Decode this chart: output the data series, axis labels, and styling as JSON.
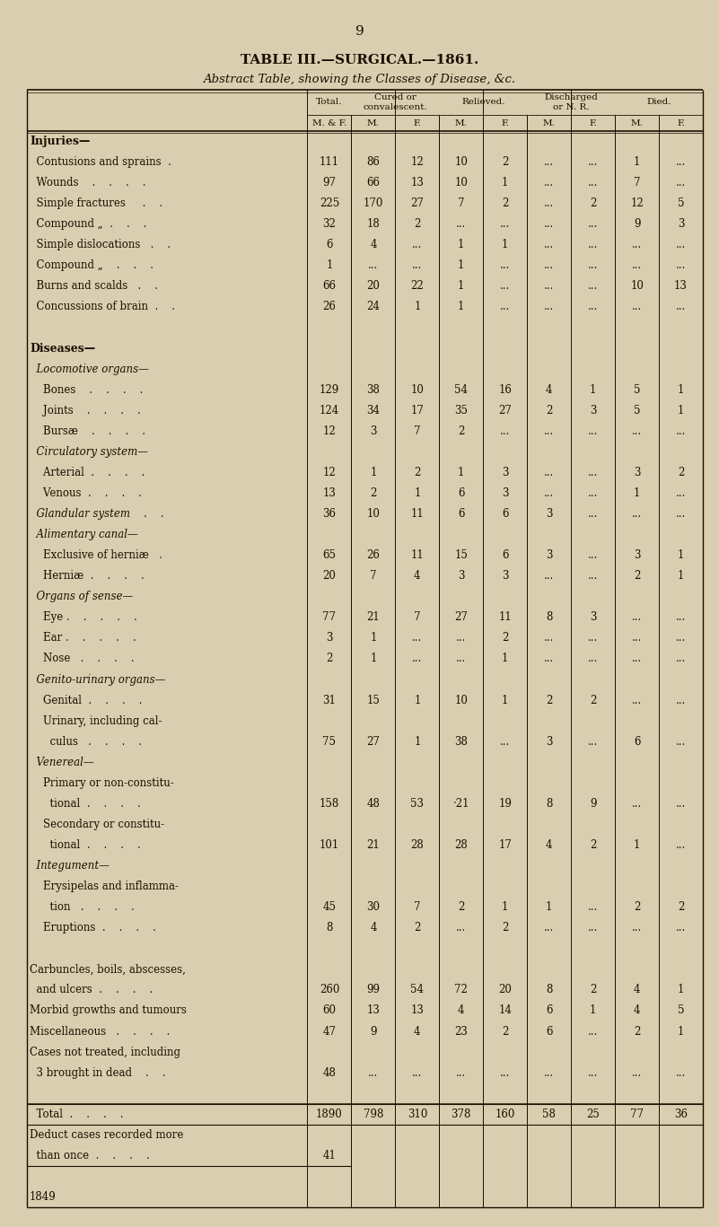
{
  "page_number": "9",
  "title": "TABLE III.—SURGICAL.—1861.",
  "subtitle": "Abstract Table, showing the Classes of Disease, &c.",
  "bg_color": "#d9cfb0",
  "text_color": "#1a0f00",
  "rows": [
    {
      "label": "Injuries—",
      "level": 0,
      "style": "bold",
      "vals": [
        "",
        "",
        "",
        "",
        "",
        "",
        "",
        "",
        ""
      ]
    },
    {
      "label": "  Contusions and sprains  .",
      "level": 1,
      "style": "normal",
      "vals": [
        "111",
        "86",
        "12",
        "10",
        "2",
        "...",
        "...",
        "1",
        "..."
      ]
    },
    {
      "label": "  Wounds    .    .    .    .",
      "level": 1,
      "style": "normal",
      "vals": [
        "97",
        "66",
        "13",
        "10",
        "1",
        "...",
        "...",
        "7",
        "..."
      ]
    },
    {
      "label": "  Simple fractures     .    .",
      "level": 1,
      "style": "normal",
      "vals": [
        "225",
        "170",
        "27",
        "7",
        "2",
        "...",
        "2",
        "12",
        "5"
      ]
    },
    {
      "label": "  Compound „  .    .    .",
      "level": 1,
      "style": "normal",
      "vals": [
        "32",
        "18",
        "2",
        "...",
        "...",
        "...",
        "...",
        "9",
        "3"
      ]
    },
    {
      "label": "  Simple dislocations   .    .",
      "level": 1,
      "style": "normal",
      "vals": [
        "6",
        "4",
        "...",
        "1",
        "1",
        "...",
        "...",
        "...",
        "..."
      ]
    },
    {
      "label": "  Compound „    .    .    .",
      "level": 1,
      "style": "normal",
      "vals": [
        "1",
        "...",
        "...",
        "1",
        "...",
        "...",
        "...",
        "...",
        "..."
      ]
    },
    {
      "label": "  Burns and scalds   .    .",
      "level": 1,
      "style": "normal",
      "vals": [
        "66",
        "20",
        "22",
        "1",
        "...",
        "...",
        "...",
        "10",
        "13"
      ]
    },
    {
      "label": "  Concussions of brain  .    .",
      "level": 1,
      "style": "normal",
      "vals": [
        "26",
        "24",
        "1",
        "1",
        "...",
        "...",
        "...",
        "...",
        "..."
      ]
    },
    {
      "label": "",
      "level": 0,
      "style": "normal",
      "vals": [
        "",
        "",
        "",
        "",
        "",
        "",
        "",
        "",
        ""
      ]
    },
    {
      "label": "Diseases—",
      "level": 0,
      "style": "bold",
      "vals": [
        "",
        "",
        "",
        "",
        "",
        "",
        "",
        "",
        ""
      ]
    },
    {
      "label": "  Locomotive organs—",
      "level": 1,
      "style": "italic",
      "vals": [
        "",
        "",
        "",
        "",
        "",
        "",
        "",
        "",
        ""
      ]
    },
    {
      "label": "    Bones    .    .    .    .",
      "level": 2,
      "style": "normal",
      "vals": [
        "129",
        "38",
        "10",
        "54",
        "16",
        "4",
        "1",
        "5",
        "1"
      ]
    },
    {
      "label": "    Joints    .    .    .    .",
      "level": 2,
      "style": "normal",
      "vals": [
        "124",
        "34",
        "17",
        "35",
        "27",
        "2",
        "3",
        "5",
        "1"
      ]
    },
    {
      "label": "    Bursæ    .    .    .    .",
      "level": 2,
      "style": "normal",
      "vals": [
        "12",
        "3",
        "7",
        "2",
        "...",
        "...",
        "...",
        "...",
        "..."
      ]
    },
    {
      "label": "  Circulatory system—",
      "level": 1,
      "style": "italic",
      "vals": [
        "",
        "",
        "",
        "",
        "",
        "",
        "",
        "",
        ""
      ]
    },
    {
      "label": "    Arterial  .    .    .    .",
      "level": 2,
      "style": "normal",
      "vals": [
        "12",
        "1",
        "2",
        "1",
        "3",
        "...",
        "...",
        "3",
        "2"
      ]
    },
    {
      "label": "    Venous  .    .    .    .",
      "level": 2,
      "style": "normal",
      "vals": [
        "13",
        "2",
        "1",
        "6",
        "3",
        "...",
        "...",
        "1",
        "..."
      ]
    },
    {
      "label": "  Glandular system    .    .",
      "level": 1,
      "style": "italic",
      "vals": [
        "36",
        "10",
        "11",
        "6",
        "6",
        "3",
        "...",
        "...",
        "..."
      ]
    },
    {
      "label": "  Alimentary canal—",
      "level": 1,
      "style": "italic",
      "vals": [
        "",
        "",
        "",
        "",
        "",
        "",
        "",
        "",
        ""
      ]
    },
    {
      "label": "    Exclusive of herniæ   .",
      "level": 2,
      "style": "normal",
      "vals": [
        "65",
        "26",
        "11",
        "15",
        "6",
        "3",
        "...",
        "3",
        "1"
      ]
    },
    {
      "label": "    Herniæ  .    .    .    .",
      "level": 2,
      "style": "normal",
      "vals": [
        "20",
        "7",
        "4",
        "3",
        "3",
        "...",
        "...",
        "2",
        "1"
      ]
    },
    {
      "label": "  Organs of sense—",
      "level": 1,
      "style": "italic",
      "vals": [
        "",
        "",
        "",
        "",
        "",
        "",
        "",
        "",
        ""
      ]
    },
    {
      "label": "    Eye .    .    .    .    .",
      "level": 2,
      "style": "normal",
      "vals": [
        "77",
        "21",
        "7",
        "27",
        "11",
        "8",
        "3",
        "...",
        "..."
      ]
    },
    {
      "label": "    Ear .    .    .    .    .",
      "level": 2,
      "style": "normal",
      "vals": [
        "3",
        "1",
        "...",
        "...",
        "2",
        "...",
        "...",
        "...",
        "..."
      ]
    },
    {
      "label": "    Nose   .    .    .    .",
      "level": 2,
      "style": "normal",
      "vals": [
        "2",
        "1",
        "...",
        "...",
        "1",
        "...",
        "...",
        "...",
        "..."
      ]
    },
    {
      "label": "  Genito-urinary organs—",
      "level": 1,
      "style": "italic",
      "vals": [
        "",
        "",
        "",
        "",
        "",
        "",
        "",
        "",
        ""
      ]
    },
    {
      "label": "    Genital  .    .    .    .",
      "level": 2,
      "style": "normal",
      "vals": [
        "31",
        "15",
        "1",
        "10",
        "1",
        "2",
        "2",
        "...",
        "..."
      ]
    },
    {
      "label": "    Urinary, including cal-",
      "level": 2,
      "style": "normal",
      "vals": [
        "",
        "",
        "",
        "",
        "",
        "",
        "",
        "",
        ""
      ]
    },
    {
      "label": "      culus   .    .    .    .",
      "level": 2,
      "style": "normal",
      "vals": [
        "75",
        "27",
        "1",
        "38",
        "...",
        "3",
        "...",
        "6",
        "..."
      ]
    },
    {
      "label": "  Venereal—",
      "level": 1,
      "style": "italic",
      "vals": [
        "",
        "",
        "",
        "",
        "",
        "",
        "",
        "",
        ""
      ]
    },
    {
      "label": "    Primary or non-constitu-",
      "level": 2,
      "style": "normal",
      "vals": [
        "",
        "",
        "",
        "",
        "",
        "",
        "",
        "",
        ""
      ]
    },
    {
      "label": "      tional  .    .    .    .",
      "level": 2,
      "style": "normal",
      "vals": [
        "158",
        "48",
        "53",
        "·21",
        "19",
        "8",
        "9",
        "...",
        "..."
      ]
    },
    {
      "label": "    Secondary or constitu-",
      "level": 2,
      "style": "normal",
      "vals": [
        "",
        "",
        "",
        "",
        "",
        "",
        "",
        "",
        ""
      ]
    },
    {
      "label": "      tional  .    .    .    .",
      "level": 2,
      "style": "normal",
      "vals": [
        "101",
        "21",
        "28",
        "28",
        "17",
        "4",
        "2",
        "1",
        "..."
      ]
    },
    {
      "label": "  Integument—",
      "level": 1,
      "style": "italic",
      "vals": [
        "",
        "",
        "",
        "",
        "",
        "",
        "",
        "",
        ""
      ]
    },
    {
      "label": "    Erysipelas and inflamma-",
      "level": 2,
      "style": "normal",
      "vals": [
        "",
        "",
        "",
        "",
        "",
        "",
        "",
        "",
        ""
      ]
    },
    {
      "label": "      tion   .    .    .    .",
      "level": 2,
      "style": "normal",
      "vals": [
        "45",
        "30",
        "7",
        "2",
        "1",
        "1",
        "...",
        "2",
        "2"
      ]
    },
    {
      "label": "    Eruptions  .    .    .    .",
      "level": 2,
      "style": "normal",
      "vals": [
        "8",
        "4",
        "2",
        "...",
        "2",
        "...",
        "...",
        "...",
        "..."
      ]
    },
    {
      "label": "",
      "level": 0,
      "style": "normal",
      "vals": [
        "",
        "",
        "",
        "",
        "",
        "",
        "",
        "",
        ""
      ]
    },
    {
      "label": "Carbuncles, boils, abscesses,",
      "level": 0,
      "style": "normal",
      "vals": [
        "",
        "",
        "",
        "",
        "",
        "",
        "",
        "",
        ""
      ]
    },
    {
      "label": "  and ulcers  .    .    .    .",
      "level": 1,
      "style": "normal",
      "vals": [
        "260",
        "99",
        "54",
        "72",
        "20",
        "8",
        "2",
        "4",
        "1"
      ]
    },
    {
      "label": "Morbid growths and tumours",
      "level": 0,
      "style": "normal",
      "vals": [
        "60",
        "13",
        "13",
        "4",
        "14",
        "6",
        "1",
        "4",
        "5"
      ]
    },
    {
      "label": "Miscellaneous   .    .    .    .",
      "level": 0,
      "style": "normal",
      "vals": [
        "47",
        "9",
        "4",
        "23",
        "2",
        "6",
        "...",
        "2",
        "1"
      ]
    },
    {
      "label": "Cases not treated, including",
      "level": 0,
      "style": "normal",
      "vals": [
        "",
        "",
        "",
        "",
        "",
        "",
        "",
        "",
        ""
      ]
    },
    {
      "label": "  3 brought in dead    .    .",
      "level": 1,
      "style": "normal",
      "vals": [
        "48",
        "...",
        "...",
        "...",
        "...",
        "...",
        "...",
        "...",
        "..."
      ]
    },
    {
      "label": "",
      "level": 0,
      "style": "normal",
      "vals": [
        "",
        "",
        "",
        "",
        "",
        "",
        "",
        "",
        ""
      ]
    },
    {
      "label": "  Total  .    .    .    .",
      "level": 0,
      "style": "normal",
      "vals": [
        "1890",
        "798",
        "310",
        "378",
        "160",
        "58",
        "25",
        "77",
        "36"
      ]
    },
    {
      "label": "Deduct cases recorded more",
      "level": 0,
      "style": "normal",
      "vals": [
        "",
        "",
        "",
        "",
        "",
        "",
        "",
        "",
        ""
      ]
    },
    {
      "label": "  than once  .    .    .    .",
      "level": 1,
      "style": "normal",
      "vals": [
        "41",
        "",
        "",
        "",
        "",
        "",
        "",
        "",
        ""
      ]
    },
    {
      "label": "",
      "level": 0,
      "style": "normal",
      "vals": [
        "",
        "",
        "",
        "",
        "",
        "",
        "",
        "",
        ""
      ]
    },
    {
      "label": "1849",
      "level": 0,
      "style": "normal",
      "vals": [
        "",
        "",
        "",
        "",
        "",
        "",
        "",
        "",
        ""
      ]
    }
  ]
}
